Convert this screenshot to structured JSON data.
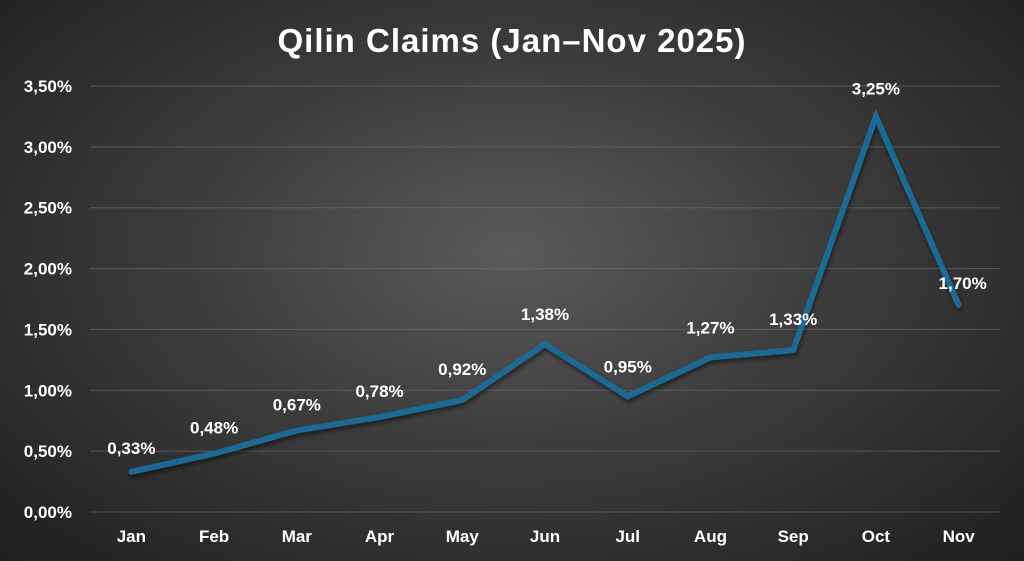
{
  "chart_data": {
    "type": "line",
    "title": "Qilin Claims (Jan–Nov 2025)",
    "xlabel": "",
    "ylabel": "",
    "categories": [
      "Jan",
      "Feb",
      "Mar",
      "Apr",
      "May",
      "Jun",
      "Jul",
      "Aug",
      "Sep",
      "Oct",
      "Nov"
    ],
    "series": [
      {
        "name": "Qilin Claims",
        "values": [
          0.33,
          0.48,
          0.67,
          0.78,
          0.92,
          1.38,
          0.95,
          1.27,
          1.33,
          3.25,
          1.7
        ],
        "labels": [
          "0,33%",
          "0,48%",
          "0,67%",
          "0,78%",
          "0,92%",
          "1,38%",
          "0,95%",
          "1,27%",
          "1,33%",
          "3,25%",
          "1,70%"
        ],
        "color": "#1b6a94"
      }
    ],
    "ylim": [
      0,
      3.5
    ],
    "yticks": [
      0,
      0.5,
      1.0,
      1.5,
      2.0,
      2.5,
      3.0,
      3.5
    ],
    "ytick_labels": [
      "0,00%",
      "0,50%",
      "1,00%",
      "1,50%",
      "2,00%",
      "2,50%",
      "3,00%",
      "3,50%"
    ],
    "grid": true,
    "legend": "none"
  }
}
